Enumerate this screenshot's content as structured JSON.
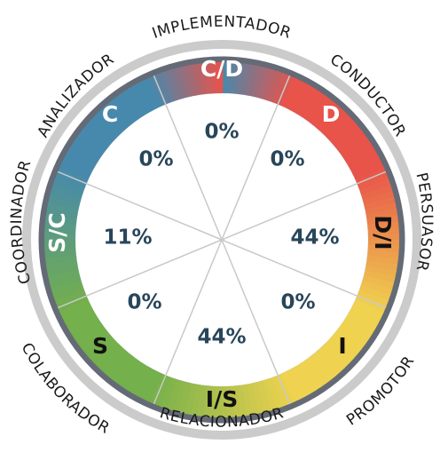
{
  "outer_labels": {
    "implementador": "IMPLEMENTADOR",
    "conductor": "CONDUCTOR",
    "persuasor": "PERSUASOR",
    "promotor": "PROMOTOR",
    "relacionador": "RELACIONADOR",
    "colaborador": "COLABORADOR",
    "coordinador": "COORDINADOR",
    "analizador": "ANALIZADOR"
  },
  "segments": {
    "cd": {
      "code": "C/D",
      "percent": "0%"
    },
    "d": {
      "code": "D",
      "percent": "0%"
    },
    "di": {
      "code": "D/I",
      "percent": "44%"
    },
    "i": {
      "code": "I",
      "percent": "0%"
    },
    "is": {
      "code": "I/S",
      "percent": "44%"
    },
    "s": {
      "code": "S",
      "percent": "0%"
    },
    "sc": {
      "code": "S/C",
      "percent": "11%"
    },
    "c": {
      "code": "C",
      "percent": "0%"
    }
  },
  "colors": {
    "d": "#e8534a",
    "i": "#efd24f",
    "s": "#74b04b",
    "c": "#4789ad",
    "outer_ring": "#cbcbcb",
    "dark_ring": "#646b76",
    "percent_text": "#28465a"
  }
}
